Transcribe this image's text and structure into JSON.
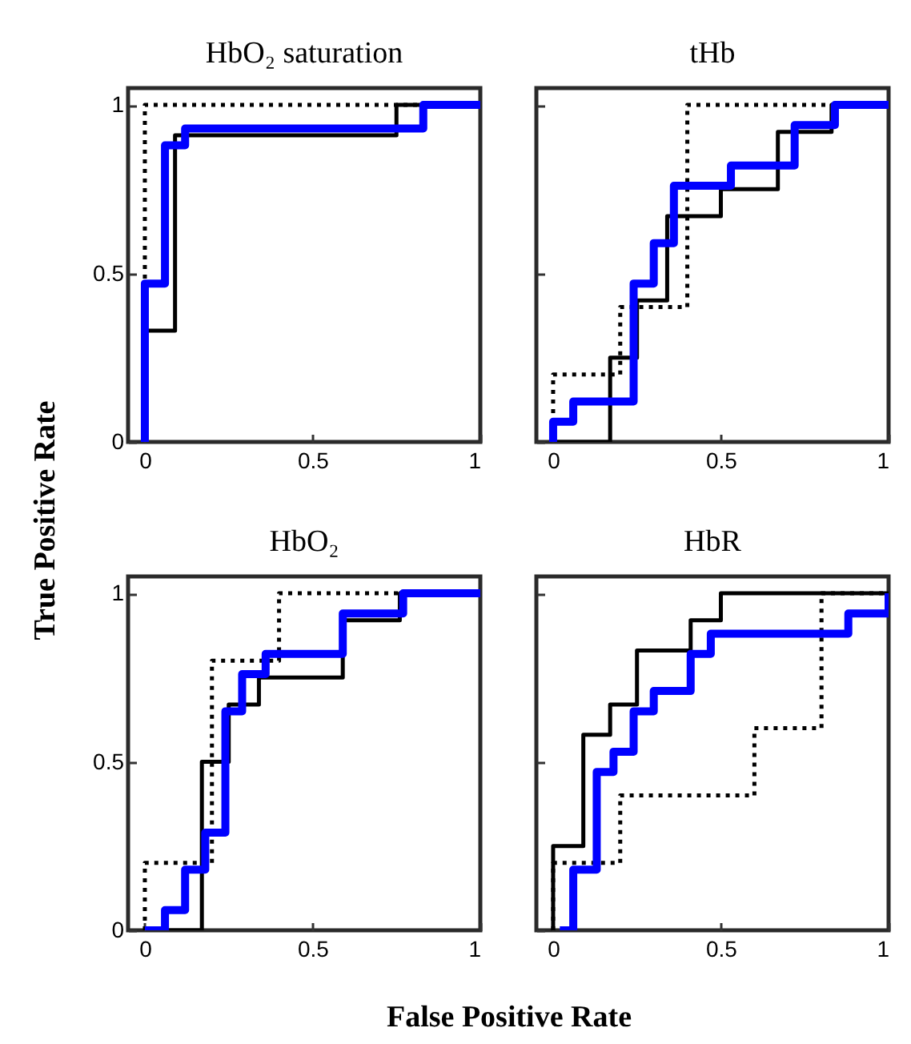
{
  "chart_data": [
    {
      "type": "line",
      "title": "HbO₂ saturation",
      "ylabel": "True Positive Rate",
      "xlim": [
        -0.05,
        1
      ],
      "ylim": [
        0,
        1.05
      ],
      "xticks": [
        0,
        0.5,
        1
      ],
      "yticks": [
        0,
        0.5,
        1
      ],
      "grid": false,
      "marker": "none",
      "series": [
        {
          "color": "#000000",
          "line_style": "dotted",
          "x": [
            0,
            0,
            1
          ],
          "values": [
            0,
            1,
            1
          ]
        },
        {
          "color": "#000000",
          "line_style": "solid",
          "x": [
            0,
            0,
            0.09,
            0.09,
            0.75,
            0.75,
            1
          ],
          "values": [
            0,
            0.33,
            0.33,
            0.91,
            0.91,
            1,
            1
          ]
        },
        {
          "color": "#0000ff",
          "line_style": "solid",
          "x": [
            0,
            0,
            0.06,
            0.06,
            0.12,
            0.12,
            0.83,
            0.83,
            1
          ],
          "values": [
            0,
            0.47,
            0.47,
            0.88,
            0.88,
            0.93,
            0.93,
            1,
            1
          ]
        }
      ]
    },
    {
      "type": "line",
      "title": "tHb",
      "xlim": [
        -0.05,
        1
      ],
      "ylim": [
        0,
        1.05
      ],
      "xticks": [
        0,
        0.5,
        1
      ],
      "yticks": [
        0,
        0.5,
        1
      ],
      "tick_labels": "x",
      "grid": false,
      "marker": "none",
      "series": [
        {
          "color": "#000000",
          "line_style": "dotted",
          "x": [
            0,
            0,
            0.2,
            0.2,
            0.4,
            0.4,
            1
          ],
          "values": [
            0,
            0.2,
            0.2,
            0.4,
            0.4,
            1,
            1
          ]
        },
        {
          "color": "#000000",
          "line_style": "solid",
          "x": [
            0,
            0.17,
            0.17,
            0.25,
            0.25,
            0.34,
            0.34,
            0.5,
            0.5,
            0.67,
            0.67,
            0.83,
            0.83,
            1
          ],
          "values": [
            0,
            0,
            0.25,
            0.25,
            0.42,
            0.42,
            0.67,
            0.67,
            0.75,
            0.75,
            0.92,
            0.92,
            1,
            1
          ]
        },
        {
          "color": "#0000ff",
          "line_style": "solid",
          "x": [
            0,
            0,
            0.06,
            0.06,
            0.24,
            0.24,
            0.3,
            0.3,
            0.36,
            0.36,
            0.53,
            0.53,
            0.72,
            0.72,
            0.84,
            0.84,
            1
          ],
          "values": [
            0,
            0.06,
            0.06,
            0.12,
            0.12,
            0.47,
            0.47,
            0.59,
            0.59,
            0.76,
            0.76,
            0.82,
            0.82,
            0.94,
            0.94,
            1,
            1
          ]
        }
      ]
    },
    {
      "type": "line",
      "title": "HbO₂",
      "xlabel": "False Positive Rate",
      "xlim": [
        -0.05,
        1
      ],
      "ylim": [
        0,
        1.05
      ],
      "xticks": [
        0,
        0.5,
        1
      ],
      "yticks": [
        0,
        0.5,
        1
      ],
      "grid": false,
      "marker": "none",
      "series": [
        {
          "color": "#000000",
          "line_style": "dotted",
          "x": [
            0,
            0,
            0.2,
            0.2,
            0.4,
            0.4,
            1
          ],
          "values": [
            0,
            0.2,
            0.2,
            0.8,
            0.8,
            1,
            1
          ]
        },
        {
          "color": "#000000",
          "line_style": "solid",
          "x": [
            0,
            0.17,
            0.17,
            0.25,
            0.25,
            0.34,
            0.34,
            0.59,
            0.59,
            0.76,
            0.76,
            1
          ],
          "values": [
            0,
            0,
            0.5,
            0.5,
            0.67,
            0.67,
            0.75,
            0.75,
            0.92,
            0.92,
            1,
            1
          ]
        },
        {
          "color": "#0000ff",
          "line_style": "solid",
          "x": [
            0,
            0.06,
            0.06,
            0.12,
            0.12,
            0.18,
            0.18,
            0.24,
            0.24,
            0.29,
            0.29,
            0.36,
            0.36,
            0.59,
            0.59,
            0.77,
            0.77,
            1
          ],
          "values": [
            0,
            0,
            0.06,
            0.06,
            0.18,
            0.18,
            0.29,
            0.29,
            0.65,
            0.65,
            0.76,
            0.76,
            0.82,
            0.82,
            0.94,
            0.94,
            1,
            1
          ]
        }
      ]
    },
    {
      "type": "line",
      "title": "HbR",
      "xlim": [
        -0.05,
        1
      ],
      "ylim": [
        0,
        1.05
      ],
      "xticks": [
        0,
        0.5,
        1
      ],
      "yticks": [
        0,
        0.5,
        1
      ],
      "tick_labels": "x",
      "grid": false,
      "marker": "none",
      "series": [
        {
          "color": "#000000",
          "line_style": "dotted",
          "x": [
            0,
            0,
            0.2,
            0.2,
            0.6,
            0.6,
            0.8,
            0.8,
            1
          ],
          "values": [
            0,
            0.2,
            0.2,
            0.4,
            0.4,
            0.6,
            0.6,
            1,
            1
          ]
        },
        {
          "color": "#000000",
          "line_style": "solid",
          "x": [
            0,
            0,
            0.09,
            0.09,
            0.17,
            0.17,
            0.25,
            0.25,
            0.41,
            0.41,
            0.5,
            0.5,
            1
          ],
          "values": [
            0,
            0.25,
            0.25,
            0.58,
            0.58,
            0.67,
            0.67,
            0.83,
            0.83,
            0.92,
            0.92,
            1,
            1
          ]
        },
        {
          "color": "#0000ff",
          "line_style": "solid",
          "x": [
            0.02,
            0.06,
            0.06,
            0.13,
            0.13,
            0.18,
            0.18,
            0.24,
            0.24,
            0.3,
            0.3,
            0.41,
            0.41,
            0.47,
            0.47,
            0.88,
            0.88,
            1,
            1
          ],
          "values": [
            0,
            0,
            0.18,
            0.18,
            0.47,
            0.47,
            0.53,
            0.53,
            0.65,
            0.65,
            0.71,
            0.71,
            0.82,
            0.82,
            0.88,
            0.88,
            0.94,
            0.94,
            1
          ]
        }
      ]
    }
  ]
}
